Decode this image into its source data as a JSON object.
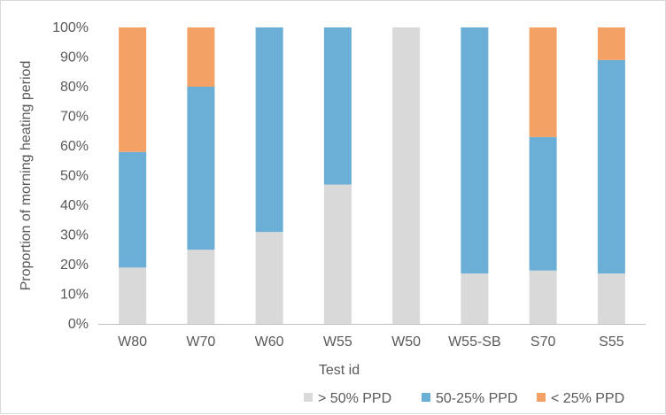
{
  "chart_data": {
    "type": "bar",
    "stacked": true,
    "categories": [
      "W80",
      "W70",
      "W60",
      "W55",
      "W50",
      "W55-SB",
      "S70",
      "S55"
    ],
    "series": [
      {
        "name": "> 50% PPD",
        "color": "#d9d9d9",
        "values": [
          19,
          25,
          31,
          47,
          100,
          17,
          18,
          17
        ]
      },
      {
        "name": "50-25% PPD",
        "color": "#6baed6",
        "values": [
          39,
          55,
          69,
          53,
          0,
          83,
          45,
          72
        ]
      },
      {
        "name": "< 25% PPD",
        "color": "#f4a166",
        "values": [
          42,
          20,
          0,
          0,
          0,
          0,
          37,
          11
        ]
      }
    ],
    "title": "",
    "xlabel": "Test id",
    "ylabel": "Proportion of morning heating period",
    "ylim": [
      0,
      100
    ],
    "yticks": [
      "0%",
      "10%",
      "20%",
      "30%",
      "40%",
      "50%",
      "60%",
      "70%",
      "80%",
      "90%",
      "100%"
    ],
    "grid": false,
    "legend_position": "bottom-right"
  }
}
